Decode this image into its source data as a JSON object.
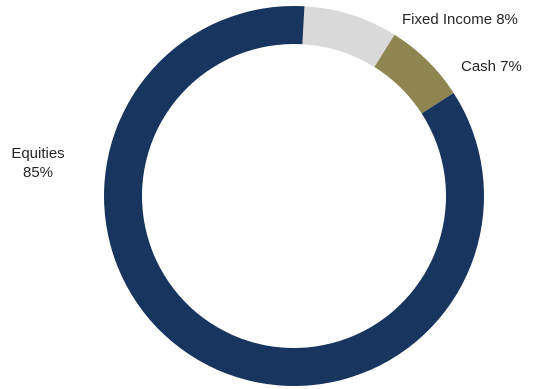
{
  "chart_data": {
    "type": "pie",
    "style": "donut",
    "categories": [
      "Equities",
      "Fixed Income",
      "Cash"
    ],
    "values": [
      85,
      8,
      7
    ],
    "unit": "%",
    "colors": [
      "#17355e",
      "#d9d9d9",
      "#8e8550"
    ],
    "labels": [
      {
        "category": "Equities",
        "name": "Equities",
        "value_text": "85%"
      },
      {
        "category": "Fixed Income",
        "text": "Fixed Income 8%"
      },
      {
        "category": "Cash",
        "text": "Cash 7%"
      }
    ]
  }
}
